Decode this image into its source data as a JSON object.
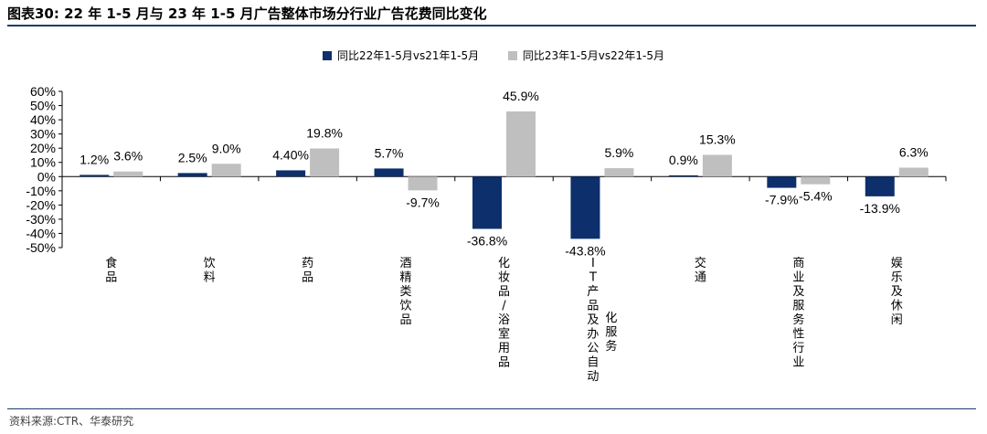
{
  "figure": {
    "title": "图表30:  22 年 1-5 月与 23 年 1-5 月广告整体市场分行业广告花费同比变化",
    "source": "资料来源:CTR、华泰研究"
  },
  "chart_data": {
    "type": "bar",
    "categories": [
      "食品",
      "饮料",
      "药品",
      "酒精类饮品",
      "化妆品/浴室用品",
      "IT产品及办公自动化服务",
      "交通",
      "商业及服务性行业",
      "娱乐及休闲"
    ],
    "series": [
      {
        "name": "同比22年1-5月vs21年1-5月",
        "color": "#0d2f6b",
        "values": [
          1.2,
          2.5,
          4.4,
          5.7,
          -36.8,
          -43.8,
          0.9,
          -7.9,
          -13.9
        ],
        "labels": [
          "1.2%",
          "2.5%",
          "4.40%",
          "5.7%",
          "-36.8%",
          "-43.8%",
          "0.9%",
          "-7.9%",
          "-13.9%"
        ]
      },
      {
        "name": "同比23年1-5月vs22年1-5月",
        "color": "#bfbfbf",
        "values": [
          3.6,
          9.0,
          19.8,
          -9.7,
          45.9,
          5.9,
          15.3,
          -5.4,
          6.3
        ],
        "labels": [
          "3.6%",
          "9.0%",
          "19.8%",
          "-9.7%",
          "45.9%",
          "5.9%",
          "15.3%",
          "-5.4%",
          "6.3%"
        ]
      }
    ],
    "ylim": [
      -50,
      60
    ],
    "yticks": [
      -50,
      -40,
      -30,
      -20,
      -10,
      0,
      10,
      20,
      30,
      40,
      50,
      60
    ],
    "ytick_labels": [
      "-50%",
      "-40%",
      "-30%",
      "-20%",
      "-10%",
      "0%",
      "10%",
      "20%",
      "30%",
      "40%",
      "50%",
      "60%"
    ],
    "legend_position": "top-center",
    "grid": false
  }
}
